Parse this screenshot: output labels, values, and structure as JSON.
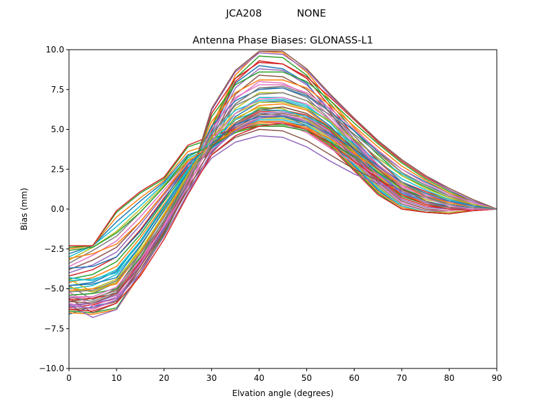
{
  "chart_data": {
    "type": "line",
    "suptitle": "JCA208           NONE",
    "title": "Antenna Phase Biases: GLONASS-L1",
    "xlabel": "Elvation angle (degrees)",
    "ylabel": "Bias (mm)",
    "xlim": [
      0,
      90
    ],
    "ylim": [
      -10,
      10
    ],
    "x_ticks": [
      0,
      10,
      20,
      30,
      40,
      50,
      60,
      70,
      80,
      90
    ],
    "y_ticks": [
      -10.0,
      -7.5,
      -5.0,
      -2.5,
      0.0,
      2.5,
      5.0,
      7.5,
      10.0
    ],
    "x": [
      0,
      5,
      10,
      15,
      20,
      25,
      30,
      35,
      40,
      45,
      50,
      55,
      60,
      65,
      70,
      75,
      80,
      85,
      90
    ],
    "grid": false,
    "legend": "none",
    "color_cycle": [
      "#1f77b4",
      "#ff7f0e",
      "#2ca02c",
      "#d62728",
      "#9467bd",
      "#8c564b",
      "#e377c2",
      "#7f7f7f",
      "#bcbd22",
      "#17becf"
    ],
    "series": [
      {
        "values": [
          -6.6,
          -6.1,
          -5.8,
          -3.6,
          -1.2,
          1.6,
          4.8,
          7.9,
          9.0,
          8.8,
          7.9,
          6.0,
          4.1,
          2.6,
          1.2,
          0.7,
          0.5,
          0.3,
          0.0
        ]
      },
      {
        "values": [
          -6.5,
          -6.6,
          -6.3,
          -4.1,
          -1.6,
          1.4,
          5.2,
          8.4,
          9.9,
          9.8,
          8.6,
          6.8,
          5.1,
          3.6,
          2.3,
          1.5,
          0.8,
          0.4,
          0.0
        ]
      },
      {
        "values": [
          -6.4,
          -6.5,
          -6.2,
          -4.0,
          -1.6,
          1.4,
          5.1,
          8.2,
          9.6,
          9.5,
          8.4,
          6.6,
          4.9,
          3.4,
          2.1,
          1.4,
          0.7,
          0.3,
          0.0
        ]
      },
      {
        "values": [
          -6.2,
          -6.0,
          -5.6,
          -3.6,
          -1.3,
          1.5,
          4.9,
          8.0,
          9.3,
          9.1,
          8.2,
          6.4,
          4.6,
          3.0,
          1.7,
          1.1,
          0.6,
          0.3,
          0.0
        ]
      },
      {
        "values": [
          -6.0,
          -5.9,
          -5.4,
          -3.4,
          -1.1,
          1.7,
          4.6,
          7.6,
          8.8,
          8.7,
          7.8,
          6.2,
          4.4,
          2.8,
          1.6,
          1.0,
          0.5,
          0.2,
          0.0
        ]
      },
      {
        "values": [
          -5.8,
          -5.6,
          -5.1,
          -3.2,
          -0.9,
          1.8,
          4.4,
          7.2,
          8.4,
          8.3,
          7.5,
          6.0,
          4.3,
          2.7,
          1.5,
          0.9,
          0.5,
          0.2,
          0.0
        ]
      },
      {
        "values": [
          -5.6,
          -5.5,
          -4.9,
          -3.0,
          -0.7,
          1.9,
          4.2,
          6.9,
          8.0,
          7.9,
          7.2,
          5.8,
          4.2,
          2.6,
          1.4,
          0.8,
          0.4,
          0.2,
          0.0
        ]
      },
      {
        "values": [
          -5.4,
          -5.3,
          -4.6,
          -2.8,
          -0.5,
          2.0,
          4.1,
          6.6,
          7.6,
          7.6,
          7.0,
          5.6,
          4.0,
          2.5,
          1.3,
          0.7,
          0.3,
          0.1,
          0.0
        ]
      },
      {
        "values": [
          -5.2,
          -5.0,
          -4.4,
          -2.6,
          -0.3,
          2.1,
          4.0,
          6.3,
          7.3,
          7.3,
          6.8,
          5.5,
          3.9,
          2.4,
          1.2,
          0.6,
          0.3,
          0.1,
          0.0
        ]
      },
      {
        "values": [
          -5.0,
          -4.8,
          -4.1,
          -2.3,
          -0.1,
          2.2,
          3.9,
          6.0,
          7.0,
          7.0,
          6.5,
          5.4,
          3.8,
          2.3,
          1.1,
          0.5,
          0.2,
          0.1,
          0.0
        ]
      },
      {
        "values": [
          -4.8,
          -4.6,
          -3.9,
          -2.1,
          0.1,
          2.3,
          3.8,
          5.8,
          6.7,
          6.8,
          6.3,
          5.2,
          3.7,
          2.2,
          1.0,
          0.4,
          0.2,
          0.1,
          0.0
        ]
      },
      {
        "values": [
          -4.6,
          -4.3,
          -3.6,
          -1.8,
          0.3,
          2.4,
          3.7,
          5.6,
          6.5,
          6.6,
          6.2,
          5.1,
          3.6,
          2.1,
          0.9,
          0.4,
          0.1,
          0.0,
          0.0
        ]
      },
      {
        "values": [
          -4.4,
          -4.1,
          -3.3,
          -1.6,
          0.5,
          2.5,
          3.6,
          5.4,
          6.3,
          6.4,
          6.0,
          5.0,
          3.5,
          2.0,
          0.8,
          0.3,
          0.1,
          0.0,
          0.0
        ]
      },
      {
        "values": [
          -4.2,
          -3.8,
          -3.0,
          -1.3,
          0.7,
          2.6,
          3.6,
          5.3,
          6.1,
          6.2,
          5.9,
          4.9,
          3.4,
          1.9,
          0.7,
          0.2,
          0.0,
          0.0,
          0.0
        ]
      },
      {
        "values": [
          -4.0,
          -3.5,
          -2.7,
          -1.0,
          0.9,
          2.7,
          3.5,
          5.2,
          6.0,
          6.1,
          5.8,
          4.8,
          3.3,
          1.8,
          0.6,
          0.1,
          0.0,
          0.0,
          0.0
        ]
      },
      {
        "values": [
          -3.8,
          -3.2,
          -2.4,
          -0.8,
          1.0,
          2.8,
          3.5,
          5.1,
          5.9,
          6.0,
          5.7,
          4.7,
          3.2,
          1.7,
          0.5,
          0.0,
          -0.1,
          0.0,
          0.0
        ]
      },
      {
        "values": [
          -3.6,
          -2.9,
          -2.0,
          -0.5,
          1.2,
          2.9,
          3.6,
          5.0,
          5.8,
          5.9,
          5.6,
          4.6,
          3.1,
          1.6,
          0.4,
          -0.1,
          -0.1,
          0.0,
          0.0
        ]
      },
      {
        "values": [
          -3.4,
          -2.6,
          -1.7,
          -0.2,
          1.4,
          3.0,
          3.6,
          5.0,
          5.7,
          5.8,
          5.5,
          4.5,
          3.0,
          1.5,
          0.3,
          -0.1,
          -0.2,
          -0.1,
          0.0
        ]
      },
      {
        "values": [
          -3.2,
          -2.4,
          -1.4,
          0.0,
          1.5,
          3.1,
          3.7,
          4.9,
          5.7,
          5.7,
          5.4,
          4.4,
          2.9,
          1.4,
          0.2,
          -0.2,
          -0.2,
          -0.1,
          0.0
        ]
      },
      {
        "values": [
          -3.0,
          -2.3,
          -1.1,
          0.2,
          1.6,
          3.2,
          3.8,
          4.9,
          5.6,
          5.6,
          5.3,
          4.3,
          2.8,
          1.3,
          0.2,
          -0.2,
          -0.3,
          -0.1,
          0.0
        ]
      },
      {
        "values": [
          -2.8,
          -2.3,
          -0.8,
          0.5,
          1.7,
          3.4,
          3.9,
          4.8,
          5.5,
          5.5,
          5.2,
          4.2,
          2.7,
          1.2,
          0.1,
          -0.2,
          -0.3,
          -0.1,
          0.0
        ]
      },
      {
        "values": [
          -2.5,
          -2.3,
          -0.5,
          0.7,
          1.8,
          3.6,
          4.1,
          4.8,
          5.4,
          5.4,
          5.1,
          4.1,
          2.6,
          1.1,
          0.1,
          -0.2,
          -0.3,
          -0.1,
          0.0
        ]
      },
      {
        "values": [
          -2.4,
          -2.3,
          -0.2,
          1.0,
          1.9,
          3.9,
          4.4,
          4.9,
          5.3,
          5.3,
          5.0,
          4.0,
          2.5,
          1.0,
          0.0,
          -0.2,
          -0.3,
          -0.1,
          0.0
        ]
      },
      {
        "values": [
          -2.3,
          -2.3,
          -0.1,
          1.1,
          2.0,
          4.0,
          4.6,
          5.0,
          5.2,
          5.2,
          4.9,
          3.9,
          2.4,
          0.9,
          0.0,
          -0.2,
          -0.3,
          -0.1,
          0.0
        ]
      },
      {
        "values": [
          -6.0,
          -6.8,
          -6.3,
          -4.0,
          -1.3,
          1.2,
          3.2,
          4.2,
          4.6,
          4.5,
          3.9,
          3.0,
          2.2,
          1.6,
          1.1,
          0.7,
          0.4,
          0.2,
          0.0
        ]
      },
      {
        "values": [
          -5.6,
          -6.5,
          -5.9,
          -3.6,
          -1.0,
          1.4,
          3.4,
          4.5,
          5.0,
          4.9,
          4.3,
          3.4,
          2.5,
          1.8,
          1.2,
          0.8,
          0.5,
          0.2,
          0.0
        ]
      },
      {
        "values": [
          -5.2,
          -6.1,
          -5.5,
          -3.2,
          -0.7,
          1.6,
          3.7,
          4.9,
          5.5,
          5.4,
          4.8,
          3.8,
          2.9,
          2.1,
          1.4,
          0.9,
          0.5,
          0.2,
          0.0
        ]
      },
      {
        "values": [
          -4.8,
          -5.7,
          -5.0,
          -2.8,
          -0.4,
          1.8,
          4.0,
          5.3,
          6.0,
          5.9,
          5.2,
          4.2,
          3.2,
          2.3,
          1.5,
          1.0,
          0.6,
          0.2,
          0.0
        ]
      },
      {
        "values": [
          -4.4,
          -5.2,
          -4.6,
          -2.4,
          0.0,
          2.0,
          4.3,
          5.7,
          6.4,
          6.3,
          5.6,
          4.6,
          3.5,
          2.5,
          1.6,
          1.0,
          0.6,
          0.2,
          0.0
        ]
      },
      {
        "values": [
          -4.5,
          -4.4,
          -4.0,
          -2.0,
          0.2,
          2.4,
          4.8,
          6.2,
          6.8,
          6.9,
          6.4,
          5.5,
          4.4,
          3.2,
          2.2,
          1.5,
          0.9,
          0.4,
          0.0
        ]
      },
      {
        "values": [
          -4.8,
          -4.7,
          -4.3,
          -2.3,
          -0.1,
          2.2,
          5.2,
          6.8,
          7.5,
          7.6,
          7.1,
          6.1,
          4.9,
          3.6,
          2.5,
          1.7,
          1.0,
          0.4,
          0.0
        ]
      },
      {
        "values": [
          -5.1,
          -5.0,
          -4.7,
          -2.7,
          -0.4,
          2.0,
          5.5,
          7.3,
          8.1,
          8.1,
          7.6,
          6.5,
          5.2,
          3.9,
          2.7,
          1.8,
          1.0,
          0.5,
          0.0
        ]
      },
      {
        "values": [
          -5.4,
          -5.3,
          -5.0,
          -3.0,
          -0.7,
          1.8,
          5.8,
          7.8,
          8.6,
          8.6,
          8.0,
          6.8,
          5.4,
          4.1,
          2.9,
          1.9,
          1.1,
          0.5,
          0.0
        ]
      },
      {
        "values": [
          -5.7,
          -5.6,
          -5.3,
          -3.3,
          -1.0,
          1.7,
          6.0,
          8.2,
          9.2,
          9.1,
          8.3,
          7.0,
          5.6,
          4.2,
          3.0,
          2.0,
          1.2,
          0.5,
          0.0
        ]
      },
      {
        "values": [
          -6.1,
          -5.9,
          -5.6,
          -3.6,
          -1.3,
          1.5,
          6.2,
          8.6,
          9.8,
          9.7,
          8.7,
          7.1,
          5.7,
          4.3,
          3.1,
          2.1,
          1.2,
          0.5,
          0.0
        ]
      },
      {
        "values": [
          -6.3,
          -6.2,
          -5.8,
          -3.8,
          -1.5,
          1.4,
          6.3,
          8.7,
          9.9,
          9.9,
          8.8,
          7.2,
          5.7,
          4.3,
          3.1,
          2.1,
          1.3,
          0.6,
          0.0
        ]
      },
      {
        "values": [
          -5.9,
          -6.3,
          -5.7,
          -3.5,
          -1.0,
          1.8,
          5.0,
          7.0,
          7.8,
          7.8,
          7.3,
          6.3,
          5.0,
          3.7,
          2.5,
          1.6,
          0.9,
          0.4,
          0.0
        ]
      },
      {
        "values": [
          -5.5,
          -5.8,
          -5.2,
          -3.1,
          -0.7,
          2.0,
          4.7,
          6.5,
          7.2,
          7.3,
          6.8,
          5.9,
          4.7,
          3.5,
          2.3,
          1.5,
          0.8,
          0.3,
          0.0
        ]
      },
      {
        "values": [
          -4.9,
          -5.2,
          -4.5,
          -2.6,
          -0.3,
          2.2,
          4.5,
          6.0,
          6.7,
          6.7,
          6.3,
          5.5,
          4.4,
          3.2,
          2.1,
          1.3,
          0.7,
          0.3,
          0.0
        ]
      },
      {
        "values": [
          -4.3,
          -4.5,
          -3.8,
          -2.0,
          0.2,
          2.5,
          4.3,
          5.6,
          6.2,
          6.2,
          5.8,
          5.1,
          4.1,
          3.0,
          1.9,
          1.2,
          0.6,
          0.2,
          0.0
        ]
      },
      {
        "values": [
          -3.7,
          -3.6,
          -3.0,
          -1.4,
          0.6,
          2.8,
          4.1,
          5.3,
          5.8,
          5.8,
          5.4,
          4.7,
          3.8,
          2.7,
          1.7,
          1.0,
          0.5,
          0.2,
          0.0
        ]
      },
      {
        "values": [
          -3.1,
          -2.8,
          -2.2,
          -0.8,
          1.0,
          3.0,
          4.0,
          5.0,
          5.5,
          5.5,
          5.1,
          4.4,
          3.5,
          2.5,
          1.5,
          0.8,
          0.4,
          0.1,
          0.0
        ]
      },
      {
        "values": [
          -2.6,
          -2.4,
          -1.5,
          -0.2,
          1.4,
          3.3,
          4.0,
          4.8,
          5.2,
          5.2,
          4.9,
          4.2,
          3.3,
          2.3,
          1.3,
          0.7,
          0.3,
          0.1,
          0.0
        ]
      },
      {
        "values": [
          -6.3,
          -6.4,
          -5.9,
          -4.2,
          -1.9,
          0.9,
          3.4,
          4.6,
          5.2,
          5.4,
          5.0,
          4.1,
          3.0,
          1.9,
          0.9,
          0.3,
          0.0,
          -0.1,
          0.0
        ]
      },
      {
        "values": [
          -6.1,
          -6.2,
          -5.7,
          -4.0,
          -1.7,
          1.0,
          3.6,
          4.9,
          5.7,
          5.9,
          5.5,
          4.6,
          3.4,
          2.2,
          1.1,
          0.4,
          0.1,
          0.0,
          0.0
        ]
      },
      {
        "values": [
          -5.8,
          -5.9,
          -5.3,
          -3.6,
          -1.4,
          1.2,
          3.9,
          5.4,
          6.2,
          6.4,
          6.0,
          5.1,
          3.8,
          2.5,
          1.3,
          0.5,
          0.1,
          0.0,
          0.0
        ]
      },
      {
        "values": [
          -5.5,
          -5.5,
          -4.9,
          -3.2,
          -1.1,
          1.4,
          4.3,
          6.0,
          6.9,
          7.0,
          6.6,
          5.6,
          4.2,
          2.8,
          1.5,
          0.7,
          0.2,
          0.0,
          0.0
        ]
      },
      {
        "values": [
          -5.2,
          -5.1,
          -4.5,
          -2.8,
          -0.8,
          1.6,
          4.7,
          6.6,
          7.6,
          7.7,
          7.2,
          6.1,
          4.6,
          3.1,
          1.7,
          0.8,
          0.3,
          0.1,
          0.0
        ]
      }
    ]
  }
}
